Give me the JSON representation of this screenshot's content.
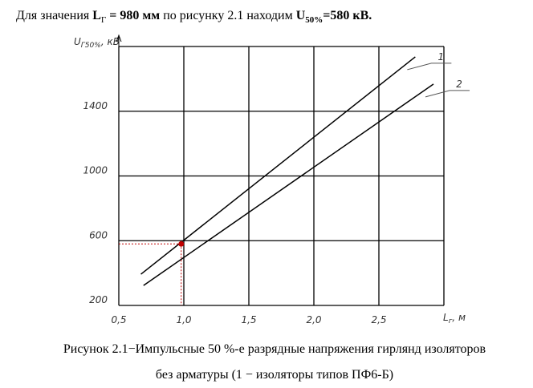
{
  "header": [
    "Для значения ",
    "L",
    "Г",
    " = 980 мм",
    " по рисунку 2.1 находим ",
    "U",
    "50%",
    "=580 кВ."
  ],
  "chart_data": {
    "type": "line",
    "y_label": [
      "U",
      "Г50%",
      ", кВ"
    ],
    "x_label": [
      "L",
      "г",
      ", м"
    ],
    "xlim": [
      0.5,
      3.0
    ],
    "xticks": [
      {
        "value": 0.5,
        "label": "0,5"
      },
      {
        "value": 1.0,
        "label": "1,0"
      },
      {
        "value": 1.5,
        "label": "1,5"
      },
      {
        "value": 2.0,
        "label": "2,0"
      },
      {
        "value": 2.5,
        "label": "2,5"
      }
    ],
    "ylim": [
      200,
      1800
    ],
    "yticks": [
      200,
      600,
      1000,
      1400
    ],
    "grid": true,
    "series": [
      {
        "name": "1",
        "color": "#000000",
        "x": [
          0.67,
          2.78
        ],
        "values": [
          393,
          1736
        ]
      },
      {
        "name": "2",
        "color": "#000000",
        "x": [
          0.69,
          2.92
        ],
        "values": [
          323,
          1568
        ]
      }
    ],
    "point": {
      "x": 0.98,
      "y": 580,
      "color": "#c00000"
    }
  },
  "caption": [
    "Рисунок 2.1−Импульсные 50 %-е разрядные напряжения гирлянд изоляторов",
    "без арматуры (1 − изоляторы типов ПФ6-Б)"
  ]
}
